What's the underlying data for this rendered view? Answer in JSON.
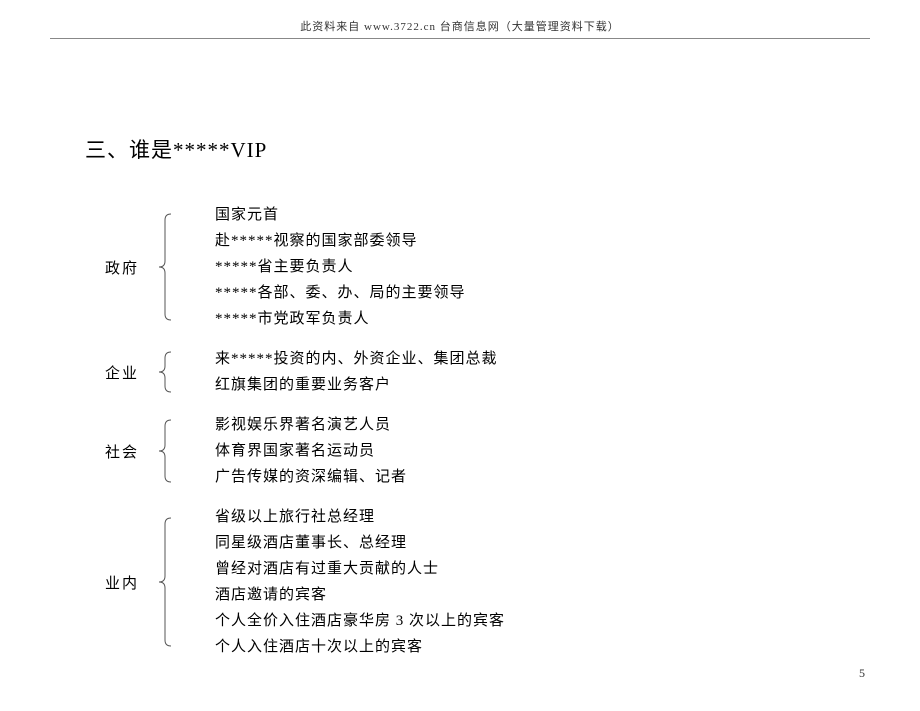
{
  "header": {
    "text": "此资料来自 www.3722.cn 台商信息网（大量管理资料下载）"
  },
  "title": "三、谁是*****VIP",
  "categories": [
    {
      "label": "政府",
      "brace_height": 110,
      "items": [
        "国家元首",
        "赴*****视察的国家部委领导",
        "*****省主要负责人",
        "*****各部、委、办、局的主要领导",
        "*****市党政军负责人"
      ]
    },
    {
      "label": "企业",
      "brace_height": 44,
      "items": [
        "来*****投资的内、外资企业、集团总裁",
        "红旗集团的重要业务客户"
      ]
    },
    {
      "label": "社会",
      "brace_height": 66,
      "items": [
        "影视娱乐界著名演艺人员",
        "体育界国家著名运动员",
        "广告传媒的资深编辑、记者"
      ]
    },
    {
      "label": "业内",
      "brace_height": 132,
      "items": [
        "省级以上旅行社总经理",
        "同星级酒店董事长、总经理",
        "曾经对酒店有过重大贡献的人士",
        "酒店邀请的宾客",
        "个人全价入住酒店豪华房 3 次以上的宾客",
        "个人入住酒店十次以上的宾客"
      ]
    }
  ],
  "page_number": "5",
  "colors": {
    "brace_stroke": "#555555",
    "text": "#000000",
    "header_text": "#333333",
    "underline": "#888888"
  },
  "typography": {
    "title_fontsize": 21,
    "body_fontsize": 15,
    "header_fontsize": 11,
    "page_num_fontsize": 12
  }
}
